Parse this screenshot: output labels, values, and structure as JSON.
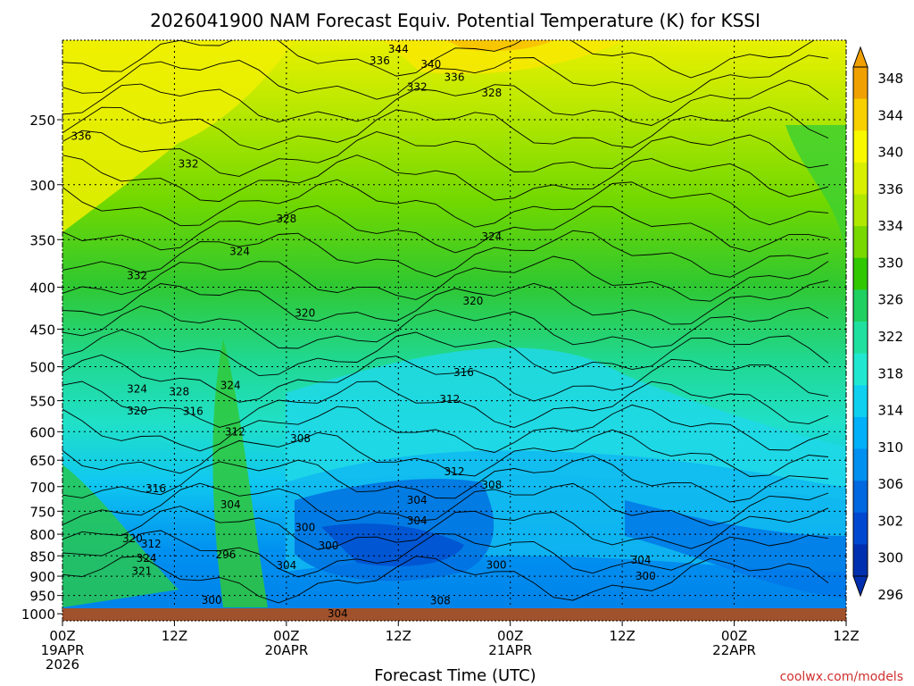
{
  "chart_data": {
    "type": "heatmap",
    "title": "2026041900 NAM Forecast Equiv. Potential Temperature (K) for KSSI",
    "xlabel": "Forecast Time (UTC)",
    "ylabel": "",
    "credit": "coolwx.com/models",
    "x_range_hours": [
      0,
      84
    ],
    "x_ticks": [
      {
        "hour": 0,
        "lines": [
          "00Z",
          "19APR",
          "2026"
        ]
      },
      {
        "hour": 12,
        "lines": [
          "12Z"
        ]
      },
      {
        "hour": 24,
        "lines": [
          "00Z",
          "20APR"
        ]
      },
      {
        "hour": 36,
        "lines": [
          "12Z"
        ]
      },
      {
        "hour": 48,
        "lines": [
          "00Z",
          "21APR"
        ]
      },
      {
        "hour": 60,
        "lines": [
          "12Z"
        ]
      },
      {
        "hour": 72,
        "lines": [
          "00Z",
          "22APR"
        ]
      },
      {
        "hour": 84,
        "lines": [
          "12Z"
        ]
      }
    ],
    "y_axis": {
      "scale": "log-pressure",
      "range_hpa": [
        1020,
        200
      ],
      "inverted": true
    },
    "y_ticks": [
      250,
      300,
      350,
      400,
      450,
      500,
      550,
      600,
      650,
      700,
      750,
      800,
      850,
      900,
      950,
      1000
    ],
    "grid": true,
    "colorbar": {
      "ticks": [
        348,
        344,
        340,
        336,
        334,
        330,
        326,
        322,
        318,
        314,
        310,
        306,
        302,
        300,
        296
      ],
      "colors": [
        "#f0a000",
        "#f8d000",
        "#f8f800",
        "#d8f000",
        "#b0e800",
        "#78d800",
        "#30c800",
        "#20d060",
        "#20e0a0",
        "#20e8d0",
        "#10d0f0",
        "#00b0f8",
        "#0090f0",
        "#0068e0",
        "#0048d0",
        "#0030b0"
      ]
    },
    "contour_labels": [
      {
        "t": 36.0,
        "p": 205,
        "v": "344"
      },
      {
        "t": 39.5,
        "p": 214,
        "v": "340"
      },
      {
        "t": 34.0,
        "p": 212,
        "v": "336"
      },
      {
        "t": 42.0,
        "p": 222,
        "v": "336"
      },
      {
        "t": 38.0,
        "p": 228,
        "v": "332"
      },
      {
        "t": 46.0,
        "p": 232,
        "v": "328"
      },
      {
        "t": 2.0,
        "p": 262,
        "v": "336"
      },
      {
        "t": 13.5,
        "p": 283,
        "v": "332"
      },
      {
        "t": 24.0,
        "p": 330,
        "v": "328"
      },
      {
        "t": 19.0,
        "p": 362,
        "v": "324"
      },
      {
        "t": 46.0,
        "p": 347,
        "v": "324"
      },
      {
        "t": 8.0,
        "p": 387,
        "v": "332"
      },
      {
        "t": 26.0,
        "p": 430,
        "v": "320"
      },
      {
        "t": 44.0,
        "p": 416,
        "v": "320"
      },
      {
        "t": 41.5,
        "p": 548,
        "v": "312"
      },
      {
        "t": 43.0,
        "p": 508,
        "v": "316"
      },
      {
        "t": 8.0,
        "p": 532,
        "v": "324"
      },
      {
        "t": 12.5,
        "p": 536,
        "v": "328"
      },
      {
        "t": 18.0,
        "p": 527,
        "v": "324"
      },
      {
        "t": 8.0,
        "p": 566,
        "v": "320"
      },
      {
        "t": 14.0,
        "p": 567,
        "v": "316"
      },
      {
        "t": 18.5,
        "p": 600,
        "v": "312"
      },
      {
        "t": 25.5,
        "p": 612,
        "v": "308"
      },
      {
        "t": 10.0,
        "p": 704,
        "v": "316"
      },
      {
        "t": 18.0,
        "p": 736,
        "v": "304"
      },
      {
        "t": 38.0,
        "p": 727,
        "v": "304"
      },
      {
        "t": 38.0,
        "p": 770,
        "v": "304"
      },
      {
        "t": 26.0,
        "p": 785,
        "v": "300"
      },
      {
        "t": 42.0,
        "p": 671,
        "v": "312"
      },
      {
        "t": 46.0,
        "p": 697,
        "v": "308"
      },
      {
        "t": 17.5,
        "p": 847,
        "v": "296"
      },
      {
        "t": 28.5,
        "p": 826,
        "v": "300"
      },
      {
        "t": 24.0,
        "p": 873,
        "v": "304"
      },
      {
        "t": 46.5,
        "p": 872,
        "v": "300"
      },
      {
        "t": 16.0,
        "p": 963,
        "v": "300"
      },
      {
        "t": 29.5,
        "p": 1000,
        "v": "304"
      },
      {
        "t": 40.5,
        "p": 964,
        "v": "308"
      },
      {
        "t": 62.0,
        "p": 860,
        "v": "304"
      },
      {
        "t": 62.5,
        "p": 900,
        "v": "300"
      },
      {
        "t": 7.5,
        "p": 810,
        "v": "320"
      },
      {
        "t": 9.5,
        "p": 822,
        "v": "312"
      },
      {
        "t": 9.0,
        "p": 856,
        "v": "324"
      },
      {
        "t": 8.5,
        "p": 887,
        "v": "321"
      }
    ]
  }
}
